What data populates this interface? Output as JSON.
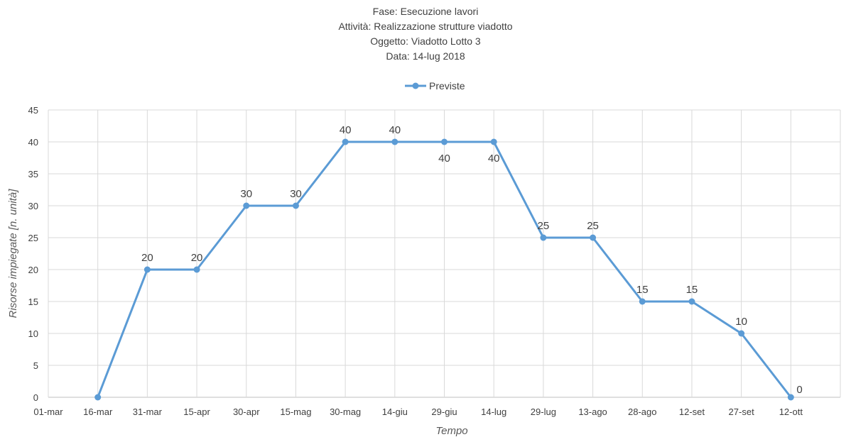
{
  "chart_data": {
    "type": "line",
    "title": [
      "Fase: Esecuzione lavori",
      "Attività: Realizzazione strutture viadotto",
      "Oggetto: Viadotto Lotto 3",
      "Data: 14-lug 2018"
    ],
    "xlabel": "Tempo",
    "ylabel": "Risorse impiegate [n. unità]",
    "categories": [
      "01-mar",
      "16-mar",
      "31-mar",
      "15-apr",
      "30-apr",
      "15-mag",
      "30-mag",
      "14-giu",
      "29-giu",
      "14-lug",
      "29-lug",
      "13-ago",
      "28-ago",
      "12-set",
      "27-set",
      "12-ott"
    ],
    "ylim": [
      0,
      45
    ],
    "yticks": [
      0,
      5,
      10,
      15,
      20,
      25,
      30,
      35,
      40,
      45
    ],
    "grid": true,
    "legend": "top",
    "series": [
      {
        "name": "Previste",
        "color": "#5B9BD5",
        "values": [
          null,
          0,
          20,
          20,
          30,
          30,
          40,
          40,
          40,
          40,
          25,
          25,
          15,
          15,
          10,
          0
        ],
        "label_placement": [
          null,
          "none",
          "above",
          "above",
          "above",
          "above",
          "above",
          "above",
          "below",
          "below",
          "above",
          "above",
          "above",
          "above",
          "above",
          "right"
        ]
      }
    ]
  }
}
